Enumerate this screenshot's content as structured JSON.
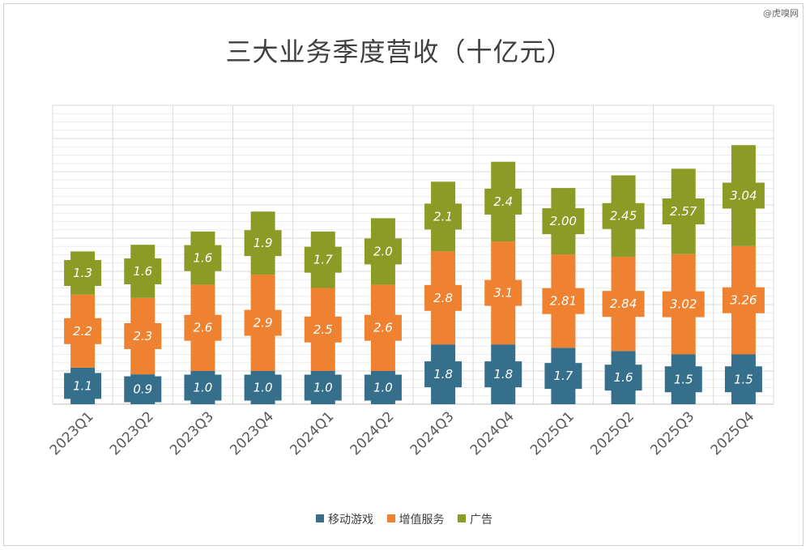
{
  "watermark": "@虎嗅网",
  "chart_data": {
    "type": "bar",
    "stacked": true,
    "title": "三大业务季度营收（十亿元）",
    "xlabel": "",
    "ylabel": "",
    "ylim": [
      0,
      9
    ],
    "grid": true,
    "legend_position": "bottom",
    "categories": [
      "2023Q1",
      "2023Q2",
      "2023Q3",
      "2023Q4",
      "2024Q1",
      "2024Q2",
      "2024Q3",
      "2024Q4",
      "2025Q1",
      "2025Q2",
      "2025Q3",
      "2025Q4"
    ],
    "series": [
      {
        "name": "移动游戏",
        "color": "#356f8c",
        "values": [
          1.1,
          0.9,
          1.0,
          1.0,
          1.0,
          1.0,
          1.8,
          1.8,
          1.7,
          1.6,
          1.5,
          1.5
        ],
        "labels": [
          "1.1",
          "0.9",
          "1.0",
          "1.0",
          "1.0",
          "1.0",
          "1.8",
          "1.8",
          "1.7",
          "1.6",
          "1.5",
          "1.5"
        ]
      },
      {
        "name": "增值服务",
        "color": "#ef8231",
        "values": [
          2.2,
          2.3,
          2.6,
          2.9,
          2.5,
          2.6,
          2.8,
          3.1,
          2.81,
          2.84,
          3.02,
          3.26
        ],
        "labels": [
          "2.2",
          "2.3",
          "2.6",
          "2.9",
          "2.5",
          "2.6",
          "2.8",
          "3.1",
          "2.81",
          "2.84",
          "3.02",
          "3.26"
        ]
      },
      {
        "name": "广告",
        "color": "#8c9a26",
        "values": [
          1.3,
          1.6,
          1.6,
          1.9,
          1.7,
          2.0,
          2.1,
          2.4,
          2.0,
          2.45,
          2.57,
          3.04
        ],
        "labels": [
          "1.3",
          "1.6",
          "1.6",
          "1.9",
          "1.7",
          "2.0",
          "2.1",
          "2.4",
          "2.00",
          "2.45",
          "2.57",
          "3.04"
        ]
      }
    ]
  }
}
